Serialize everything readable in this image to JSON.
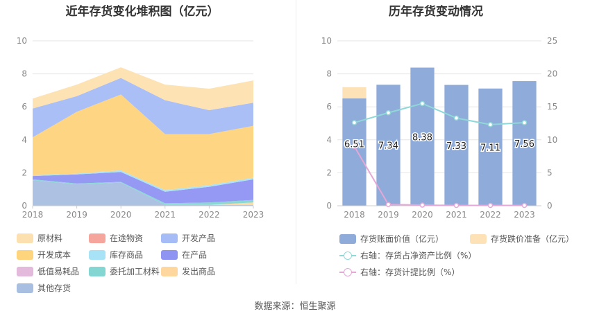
{
  "left_title": "近年存货变化堆积图（亿元）",
  "right_title": "历年存货变动情况",
  "source": "数据来源：恒生聚源",
  "colors": {
    "原材料": "#fde0b0",
    "在途物资": "#f5a59c",
    "开发产品": "#a6bcf7",
    "开发成本": "#fed47c",
    "库存商品": "#a8e2f7",
    "在产品": "#8f94f2",
    "低值易耗品": "#e3b9dc",
    "委托加工材料": "#84d6d2",
    "发出商品": "#fed79e",
    "其他存货": "#a9bfe2",
    "存货账面价值": "#8fabd9",
    "存货跌价准备": "#fde2b8",
    "存货占净资产比例": "#8fd8d8",
    "存货计提比例": "#e5a7d6"
  },
  "left_legend": [
    {
      "label": "原材料",
      "color": "#fde0b0"
    },
    {
      "label": "在途物资",
      "color": "#f5a59c"
    },
    {
      "label": "开发产品",
      "color": "#a6bcf7"
    },
    {
      "label": "开发成本",
      "color": "#fed47c"
    },
    {
      "label": "库存商品",
      "color": "#a8e2f7"
    },
    {
      "label": "在产品",
      "color": "#8f94f2"
    },
    {
      "label": "低值易耗品",
      "color": "#e3b9dc"
    },
    {
      "label": "委托加工材料",
      "color": "#84d6d2"
    },
    {
      "label": "发出商品",
      "color": "#fed79e"
    },
    {
      "label": "其他存货",
      "color": "#a9bfe2"
    }
  ],
  "right_legend": [
    {
      "label": "存货账面价值（亿元）",
      "color": "#8fabd9",
      "kind": "bar"
    },
    {
      "label": "存货跌价准备（亿元）",
      "color": "#fde2b8",
      "kind": "bar"
    },
    {
      "label": "右轴：存货占净资产比例（%）",
      "color": "#8fd8d8",
      "kind": "line"
    },
    {
      "label": "右轴：存货计提比例（%）",
      "color": "#e5a7d6",
      "kind": "line"
    }
  ],
  "chart_data": [
    {
      "type": "area",
      "stacked": true,
      "title": "近年存货变化堆积图（亿元）",
      "x": [
        "2018",
        "2019",
        "2020",
        "2021",
        "2022",
        "2023"
      ],
      "ylim": [
        0,
        10
      ],
      "yticks": [
        0,
        2,
        4,
        6,
        8,
        10
      ],
      "grid": true,
      "series": [
        {
          "name": "其他存货",
          "values": [
            1.55,
            1.3,
            1.4,
            0.05,
            0.05,
            0.05
          ]
        },
        {
          "name": "发出商品",
          "values": [
            0,
            0,
            0,
            0,
            0,
            0.15
          ]
        },
        {
          "name": "委托加工材料",
          "values": [
            0.05,
            0.05,
            0.05,
            0.1,
            0.15,
            0.15
          ]
        },
        {
          "name": "低值易耗品",
          "values": [
            0,
            0,
            0,
            0,
            0,
            0
          ]
        },
        {
          "name": "在产品",
          "values": [
            0.2,
            0.55,
            0.6,
            0.7,
            0.95,
            1.25
          ]
        },
        {
          "name": "库存商品",
          "values": [
            0.05,
            0.05,
            0.1,
            0.1,
            0.1,
            0.1
          ]
        },
        {
          "name": "开发成本",
          "values": [
            2.3,
            3.75,
            4.6,
            3.4,
            3.1,
            3.15
          ]
        },
        {
          "name": "开发产品",
          "values": [
            1.75,
            0.95,
            1.0,
            2.05,
            1.45,
            1.4
          ]
        },
        {
          "name": "在途物资",
          "values": [
            0,
            0,
            0,
            0,
            0,
            0
          ]
        },
        {
          "name": "原材料",
          "values": [
            0.6,
            0.7,
            0.65,
            0.95,
            1.3,
            1.35
          ]
        }
      ]
    },
    {
      "type": "bar",
      "title": "历年存货变动情况",
      "x": [
        "2018",
        "2019",
        "2020",
        "2021",
        "2022",
        "2023"
      ],
      "ylim": [
        0,
        10
      ],
      "yticks": [
        0,
        2,
        4,
        6,
        8,
        10
      ],
      "y2lim": [
        0,
        25
      ],
      "y2ticks": [
        0,
        5,
        10,
        15,
        20,
        25
      ],
      "grid": true,
      "bars": [
        {
          "name": "存货账面价值（亿元）",
          "values": [
            6.51,
            7.34,
            8.38,
            7.33,
            7.11,
            7.56
          ],
          "labels": [
            "6.51",
            "7.34",
            "8.38",
            "7.33",
            "7.11",
            "7.56"
          ]
        },
        {
          "name": "存货跌价准备（亿元）",
          "values": [
            0.68,
            0,
            0,
            0,
            0,
            0
          ]
        }
      ],
      "lines": [
        {
          "name": "右轴：存货占净资产比例（%）",
          "axis": "right",
          "values": [
            12.6,
            14.1,
            15.5,
            13.3,
            12.3,
            12.6
          ]
        },
        {
          "name": "右轴：存货计提比例（%）",
          "axis": "right",
          "values": [
            9.0,
            0.2,
            0.1,
            0.05,
            0.05,
            0.05
          ]
        }
      ]
    }
  ]
}
